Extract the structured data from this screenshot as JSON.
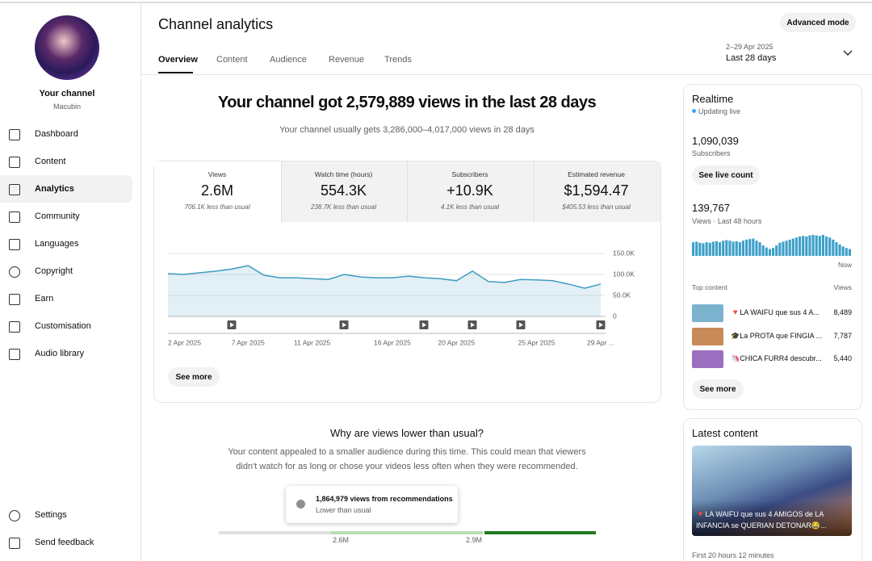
{
  "sidebar": {
    "channel_label": "Your channel",
    "channel_name": "Macubin",
    "nav": [
      "Dashboard",
      "Content",
      "Analytics",
      "Community",
      "Languages",
      "Copyright",
      "Earn",
      "Customisation",
      "Audio library"
    ],
    "footer": [
      "Settings",
      "Send feedback"
    ]
  },
  "header": {
    "title": "Channel analytics",
    "tabs": [
      "Overview",
      "Content",
      "Audience",
      "Revenue",
      "Trends"
    ],
    "advanced_button": "Advanced mode",
    "date_range": "2–29 Apr 2025",
    "period": "Last 28 days"
  },
  "summary": {
    "headline": "Your channel got 2,579,889 views in the last 28 days",
    "subline": "Your channel usually gets 3,286,000–4,017,000 views in 28 days"
  },
  "metrics": [
    {
      "label": "Views",
      "value": "2.6M",
      "note": "706.1K less than usual"
    },
    {
      "label": "Watch time (hours)",
      "value": "554.3K",
      "note": "238.7K less than usual"
    },
    {
      "label": "Subscribers",
      "value": "+10.9K",
      "note": "4.1K less than usual"
    },
    {
      "label": "Estimated revenue",
      "value": "$1,594.47",
      "note": "$405.53 less than usual"
    }
  ],
  "chart_data": {
    "type": "line",
    "color": "#3d9bc2",
    "categories": [
      "2 Apr 2025",
      null,
      null,
      null,
      null,
      "7 Apr 2025",
      null,
      null,
      null,
      "11 Apr 2025",
      null,
      null,
      null,
      null,
      "16 Apr 2025",
      null,
      null,
      null,
      "20 Apr 2025",
      null,
      null,
      null,
      null,
      "25 Apr 2025",
      null,
      null,
      null,
      "29 Apr ..."
    ],
    "values": [
      102000,
      100000,
      104000,
      108000,
      113000,
      121000,
      98000,
      92000,
      92000,
      90000,
      88000,
      100000,
      94000,
      92000,
      92000,
      96000,
      92000,
      90000,
      85000,
      108000,
      83000,
      81000,
      88000,
      87000,
      85000,
      77000,
      67000,
      77000
    ],
    "ylim": [
      0,
      150000
    ],
    "yticks": [
      0,
      {
        "value": 50000,
        "label": "50.0K"
      },
      {
        "value": 100000,
        "label": "100.0K"
      },
      {
        "value": 150000,
        "label": "150.0K"
      }
    ],
    "grid": true
  },
  "see_more": "See more",
  "insight": {
    "title": "Why are views lower than usual?",
    "text": "Your content appealed to a smaller audience during this time. This could mean that viewers didn't watch for as long or chose your videos less often when they were recommended.",
    "callout_title": "1,864,979 views from recommendations",
    "callout_subtitle": "Lower than usual",
    "range_labels": [
      "2.6M",
      "2.9M"
    ]
  },
  "realtime": {
    "title": "Realtime",
    "status": "Updating live",
    "subscribers": "1,090,039",
    "subscribers_label": "Subscribers",
    "live_button": "See live count",
    "views": "139,767",
    "views_label": "Views · Last 48 hours",
    "views_last_48_hours": [
      2600,
      2700,
      2500,
      2400,
      2600,
      2500,
      2700,
      2800,
      2600,
      2900,
      3000,
      2900,
      2700,
      2800,
      2600,
      2900,
      3100,
      3200,
      3300,
      2900,
      2600,
      2000,
      1600,
      1300,
      1500,
      2000,
      2500,
      2700,
      2900,
      3100,
      3300,
      3500,
      3700,
      3800,
      3700,
      3900,
      4000,
      3900,
      3800,
      4000,
      3700,
      3500,
      3100,
      2600,
      2200,
      1800,
      1500,
      1300
    ],
    "now_label": "Now",
    "top_content_label": "Top content",
    "views_column": "Views",
    "top_content": [
      {
        "title": "🔻LA WAIFU que sus 4 A...",
        "views": "8,489"
      },
      {
        "title": "🎓La PROTA que FINGIA ...",
        "views": "7,787"
      },
      {
        "title": "🦄CHICA FURR4 descubr...",
        "views": "5,440"
      }
    ],
    "see_more": "See more"
  },
  "latest_content": {
    "title": "Latest content",
    "video_title": "🔻LA WAIFU que sus 4 AMIGOS de LA INFANCIA se QUERIAN DETONAR😂...",
    "age": "First 20 hours 12 minutes"
  }
}
